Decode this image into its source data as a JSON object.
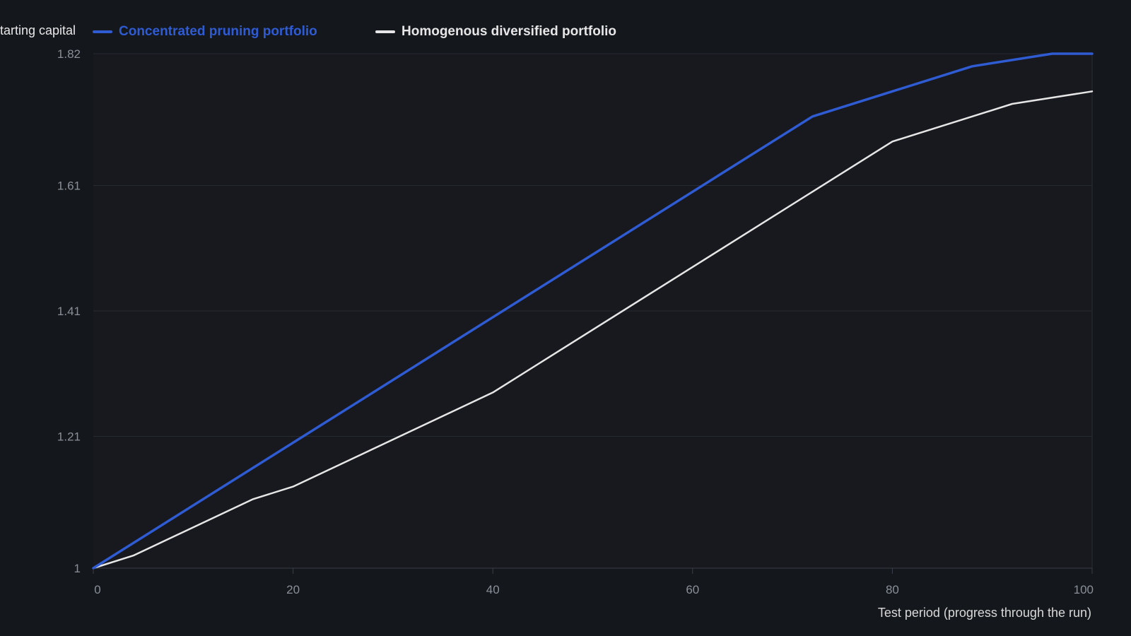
{
  "chart_data": {
    "type": "line",
    "title": "",
    "ylabel": "tarting capital",
    "xlabel": "Test period (progress through the run)",
    "xlim": [
      0,
      100
    ],
    "ylim": [
      1,
      1.82
    ],
    "x_ticks": [
      "0",
      "20",
      "40",
      "60",
      "80",
      "100"
    ],
    "y_ticks": [
      "1",
      "1.21",
      "1.41",
      "1.61",
      "1.82"
    ],
    "legend_position": "top-left",
    "grid": true,
    "series": [
      {
        "name": "Concentrated pruning portfolio",
        "color": "#2f5bd3",
        "points": [
          [
            0,
            1.0
          ],
          [
            72,
            1.72
          ],
          [
            80,
            1.76
          ],
          [
            88,
            1.8
          ],
          [
            96,
            1.82
          ],
          [
            100,
            1.82
          ]
        ]
      },
      {
        "name": "Homogenous diversified portfolio",
        "color": "#e6e6e6",
        "points": [
          [
            0,
            1.0
          ],
          [
            4,
            1.02
          ],
          [
            16,
            1.11
          ],
          [
            20,
            1.13
          ],
          [
            40,
            1.28
          ],
          [
            72,
            1.6
          ],
          [
            80,
            1.68
          ],
          [
            88,
            1.72
          ],
          [
            92,
            1.74
          ],
          [
            100,
            1.76
          ]
        ]
      }
    ]
  }
}
